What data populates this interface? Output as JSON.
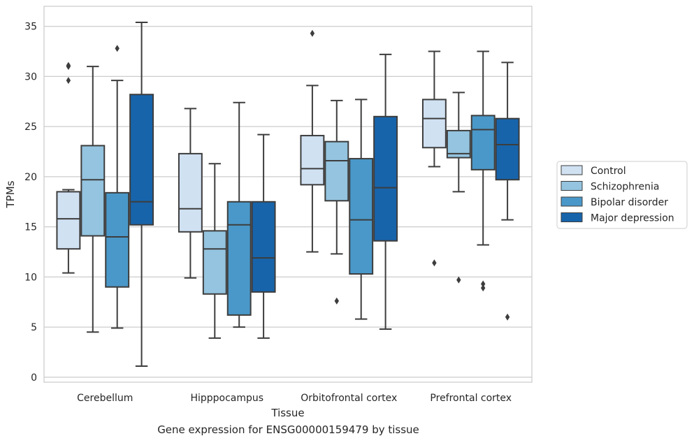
{
  "caption": "Gene expression for ENSG00000159479 by tissue",
  "chart_data": {
    "type": "box",
    "xlabel": "Tissue",
    "ylabel": "TPMs",
    "ylim": [
      -0.5,
      37.0
    ],
    "yticks": [
      0,
      5,
      10,
      15,
      20,
      25,
      30,
      35
    ],
    "grid": "horizontal",
    "legend_position": "right",
    "categories": [
      "Cerebellum",
      "Hipppocampus",
      "Orbitofrontal cortex",
      "Prefrontal cortex"
    ],
    "series": [
      {
        "name": "Control",
        "color": "#d0e1f2",
        "boxes": [
          {
            "whisker_low": 10.4,
            "q1": 12.8,
            "median": 15.8,
            "q3": 18.5,
            "whisker_high": 18.7,
            "outliers": [
              31.1,
              31.0,
              29.6
            ]
          },
          {
            "whisker_low": 9.9,
            "q1": 14.5,
            "median": 16.8,
            "q3": 22.3,
            "whisker_high": 26.8,
            "outliers": []
          },
          {
            "whisker_low": 12.5,
            "q1": 19.2,
            "median": 20.8,
            "q3": 24.1,
            "whisker_high": 29.1,
            "outliers": [
              34.3
            ]
          },
          {
            "whisker_low": 21.0,
            "q1": 22.9,
            "median": 25.8,
            "q3": 27.7,
            "whisker_high": 32.5,
            "outliers": [
              11.4
            ]
          }
        ]
      },
      {
        "name": "Schizophrenia",
        "color": "#94c4df",
        "boxes": [
          {
            "whisker_low": 4.5,
            "q1": 14.1,
            "median": 19.7,
            "q3": 23.1,
            "whisker_high": 31.0,
            "outliers": []
          },
          {
            "whisker_low": 3.9,
            "q1": 8.3,
            "median": 12.8,
            "q3": 14.6,
            "whisker_high": 21.3,
            "outliers": []
          },
          {
            "whisker_low": 12.3,
            "q1": 17.6,
            "median": 21.6,
            "q3": 23.5,
            "whisker_high": 27.6,
            "outliers": [
              7.6
            ]
          },
          {
            "whisker_low": 18.5,
            "q1": 21.9,
            "median": 22.3,
            "q3": 24.6,
            "whisker_high": 28.4,
            "outliers": [
              9.7
            ]
          }
        ]
      },
      {
        "name": "Bipolar disorder",
        "color": "#4a98c9",
        "boxes": [
          {
            "whisker_low": 4.9,
            "q1": 9.0,
            "median": 14.0,
            "q3": 18.4,
            "whisker_high": 29.6,
            "outliers": [
              32.8
            ]
          },
          {
            "whisker_low": 5.0,
            "q1": 6.2,
            "median": 15.2,
            "q3": 17.5,
            "whisker_high": 27.4,
            "outliers": []
          },
          {
            "whisker_low": 5.8,
            "q1": 10.3,
            "median": 15.7,
            "q3": 21.8,
            "whisker_high": 27.7,
            "outliers": []
          },
          {
            "whisker_low": 13.2,
            "q1": 20.7,
            "median": 24.7,
            "q3": 26.1,
            "whisker_high": 32.5,
            "outliers": [
              9.3,
              8.9
            ]
          }
        ]
      },
      {
        "name": "Major depression",
        "color": "#1764ab",
        "boxes": [
          {
            "whisker_low": 1.1,
            "q1": 15.2,
            "median": 17.5,
            "q3": 28.2,
            "whisker_high": 35.4,
            "outliers": []
          },
          {
            "whisker_low": 3.9,
            "q1": 8.5,
            "median": 11.9,
            "q3": 17.5,
            "whisker_high": 24.2,
            "outliers": []
          },
          {
            "whisker_low": 4.8,
            "q1": 13.6,
            "median": 18.9,
            "q3": 26.0,
            "whisker_high": 32.2,
            "outliers": []
          },
          {
            "whisker_low": 15.7,
            "q1": 19.7,
            "median": 23.2,
            "q3": 25.8,
            "whisker_high": 31.4,
            "outliers": [
              6.0
            ]
          }
        ]
      }
    ]
  }
}
